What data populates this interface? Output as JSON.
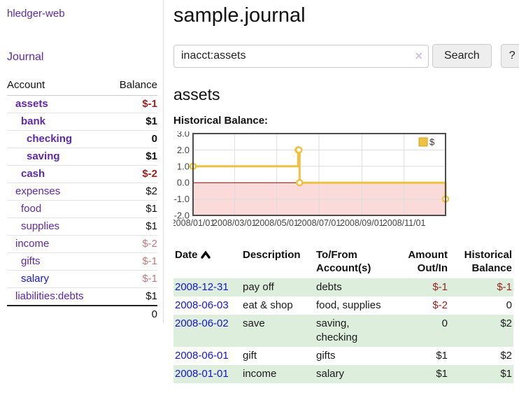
{
  "app": {
    "title": "hledger-web"
  },
  "sidebar": {
    "journal_link": "Journal",
    "accounts_table": {
      "col_account": "Account",
      "col_balance": "Balance",
      "rows": [
        {
          "name": "assets",
          "level": 1,
          "bold": true,
          "balance": "$-1",
          "neg": "strong",
          "link": "purple"
        },
        {
          "name": "bank",
          "level": 2,
          "bold": true,
          "balance": "$1",
          "neg": "none",
          "link": "purple"
        },
        {
          "name": "checking",
          "level": 3,
          "bold": true,
          "balance": "0",
          "neg": "none",
          "link": "purple"
        },
        {
          "name": "saving",
          "level": 3,
          "bold": true,
          "balance": "$1",
          "neg": "none",
          "link": "purple"
        },
        {
          "name": "cash",
          "level": 2,
          "bold": true,
          "balance": "$-2",
          "neg": "strong",
          "link": "purple"
        },
        {
          "name": "expenses",
          "level": 1,
          "bold": false,
          "balance": "$2",
          "neg": "none",
          "link": "purple"
        },
        {
          "name": "food",
          "level": 2,
          "bold": false,
          "balance": "$1",
          "neg": "none",
          "link": "purple"
        },
        {
          "name": "supplies",
          "level": 2,
          "bold": false,
          "balance": "$1",
          "neg": "none",
          "link": "purple"
        },
        {
          "name": "income",
          "level": 1,
          "bold": false,
          "balance": "$-2",
          "neg": "soft",
          "link": "purple"
        },
        {
          "name": "gifts",
          "level": 2,
          "bold": false,
          "balance": "$-1",
          "neg": "soft",
          "link": "purple"
        },
        {
          "name": "salary",
          "level": 2,
          "bold": false,
          "balance": "$-1",
          "neg": "soft",
          "link": "blue"
        },
        {
          "name": "liabilities:debts",
          "level": 1,
          "bold": false,
          "balance": "$1",
          "neg": "none",
          "link": "purple"
        }
      ],
      "total": "0"
    }
  },
  "main": {
    "title": "sample.journal",
    "search": {
      "value": "inacct:assets",
      "clear_icon": "×",
      "search_label": "Search",
      "help_label": "?"
    },
    "account_heading": "assets",
    "chart_label": "Historical Balance:"
  },
  "chart_data": {
    "type": "line",
    "step": true,
    "title": "Historical Balance",
    "series": [
      {
        "name": "$",
        "color": "#edc240",
        "points": [
          [
            "2008-01-01",
            1
          ],
          [
            "2008-06-01",
            2
          ],
          [
            "2008-06-02",
            2
          ],
          [
            "2008-06-03",
            0
          ],
          [
            "2008-12-31",
            -1
          ]
        ]
      }
    ],
    "x_range": [
      "2008-01-01",
      "2008-12-31"
    ],
    "ylim": [
      -2,
      3
    ],
    "y_tick_labels": [
      "3.0",
      "2.0",
      "1.0",
      "0.0",
      "-1.0",
      "-2.0"
    ],
    "y_ticks": [
      3,
      2,
      1,
      0,
      -1,
      -2
    ],
    "x_ticks": [
      "2008-01-01",
      "2008-03-01",
      "2008-05-01",
      "2008-07-01",
      "2008-09-01",
      "2008-11-01"
    ],
    "x_tick_labels": [
      "2008/01/01",
      "2008/03/01",
      "2008/05/01",
      "2008/07/01",
      "2008/09/01",
      "2008/11/01"
    ],
    "legend": {
      "label": "$",
      "position": "top-right"
    },
    "grid": true,
    "negative_region_fill": "#fbdada",
    "zero_line_color": "#8b0000"
  },
  "transactions": {
    "headers": {
      "date": "Date",
      "description": "Description",
      "accounts": "To/From Account(s)",
      "amount": "Amount Out/In",
      "balance": "Historical Balance"
    },
    "rows": [
      {
        "date": "2008-12-31",
        "description": "pay off",
        "accounts": "debts",
        "amount": "$-1",
        "amount_neg": true,
        "balance": "$-1",
        "balance_neg": true
      },
      {
        "date": "2008-06-03",
        "description": "eat & shop",
        "accounts": "food, supplies",
        "amount": "$-2",
        "amount_neg": true,
        "balance": "0",
        "balance_neg": false
      },
      {
        "date": "2008-06-02",
        "description": "save",
        "accounts": "saving, checking",
        "amount": "0",
        "amount_neg": false,
        "balance": "$2",
        "balance_neg": false
      },
      {
        "date": "2008-06-01",
        "description": "gift",
        "accounts": "gifts",
        "amount": "$1",
        "amount_neg": false,
        "balance": "$2",
        "balance_neg": false
      },
      {
        "date": "2008-01-01",
        "description": "income",
        "accounts": "salary",
        "amount": "$1",
        "amount_neg": false,
        "balance": "$1",
        "balance_neg": false
      }
    ]
  },
  "colors": {
    "purple_link": "#6028a5",
    "blue_link": "#1414d6",
    "negative_strong": "#9c1f1c",
    "negative_soft": "#c17b7b",
    "row_stripe_green": "#ddeedd",
    "series_yellow": "#edc240",
    "negative_region_pink": "#fbdada",
    "zero_line_red": "#8b0000",
    "plot_border_gray": "#4d4d4d"
  }
}
